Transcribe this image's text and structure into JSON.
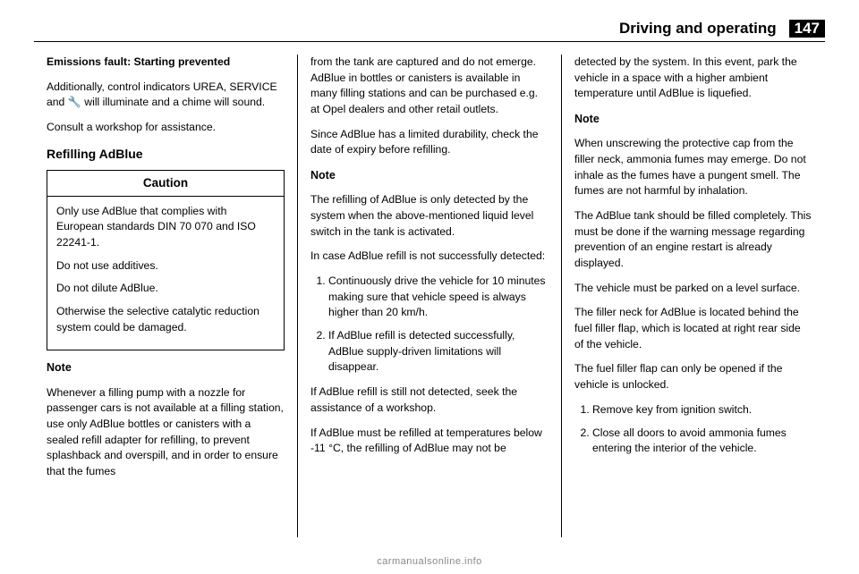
{
  "header": {
    "section": "Driving and operating",
    "pagenum": "147"
  },
  "col1": {
    "p1": "Emissions fault: Starting prevented",
    "p2a": "Additionally, control indicators UREA, SERVICE and ",
    "p2icon": "🔧",
    "p2b": " will illuminate and a chime will sound.",
    "p3": "Consult a workshop for assistance.",
    "h3": "Refilling AdBlue",
    "caution": {
      "title": "Caution",
      "b1": "Only use AdBlue that complies with European standards DIN 70 070 and ISO 22241-1.",
      "b2": "Do not use additives.",
      "b3": "Do not dilute AdBlue.",
      "b4": "Otherwise the selective catalytic reduction system could be damaged."
    },
    "noteHead": "Note",
    "noteBody": "Whenever a filling pump with a nozzle for passenger cars is not available at a filling station, use only AdBlue bottles or canisters with a sealed refill adapter for refilling, to prevent splashback and overspill, and in order to ensure that the fumes"
  },
  "col2": {
    "p1": "from the tank are captured and do not emerge. AdBlue in bottles or canisters is available in many filling stations and can be purchased e.g. at Opel dealers and other retail outlets.",
    "p2": "Since AdBlue has a limited durability, check the date of expiry before refilling.",
    "noteHead": "Note",
    "noteBody": "The refilling of AdBlue is only detected by the system when the above-mentioned liquid level switch in the tank is activated.",
    "p3": "In case AdBlue refill is not successfully detected:",
    "step1": "Continuously drive the vehicle for 10 minutes making sure that vehicle speed is always higher than 20 km/h.",
    "step2": "If AdBlue refill is detected successfully, AdBlue supply-driven limitations will disappear.",
    "p4": "If AdBlue refill is still not detected, seek the assistance of a workshop.",
    "p5": "If AdBlue must be refilled at temperatures below -11 °C, the refilling of AdBlue may not be"
  },
  "col3": {
    "p1": "detected by the system. In this event, park the vehicle in a space with a higher ambient temperature until AdBlue is liquefied.",
    "noteHead": "Note",
    "noteBody": "When unscrewing the protective cap from the filler neck, ammonia fumes may emerge. Do not inhale as the fumes have a pungent smell. The fumes are not harmful by inhalation.",
    "p2": "The AdBlue tank should be filled completely. This must be done if the warning message regarding prevention of an engine restart is already displayed.",
    "p3": "The vehicle must be parked on a level surface.",
    "p4": "The filler neck for AdBlue is located behind the fuel filler flap, which is located at right rear side of the vehicle.",
    "p5": "The fuel filler flap can only be opened if the vehicle is unlocked.",
    "step1": "Remove key from ignition switch.",
    "step2": "Close all doors to avoid ammonia fumes entering the interior of the vehicle."
  },
  "footer": "carmanualsonline.info"
}
